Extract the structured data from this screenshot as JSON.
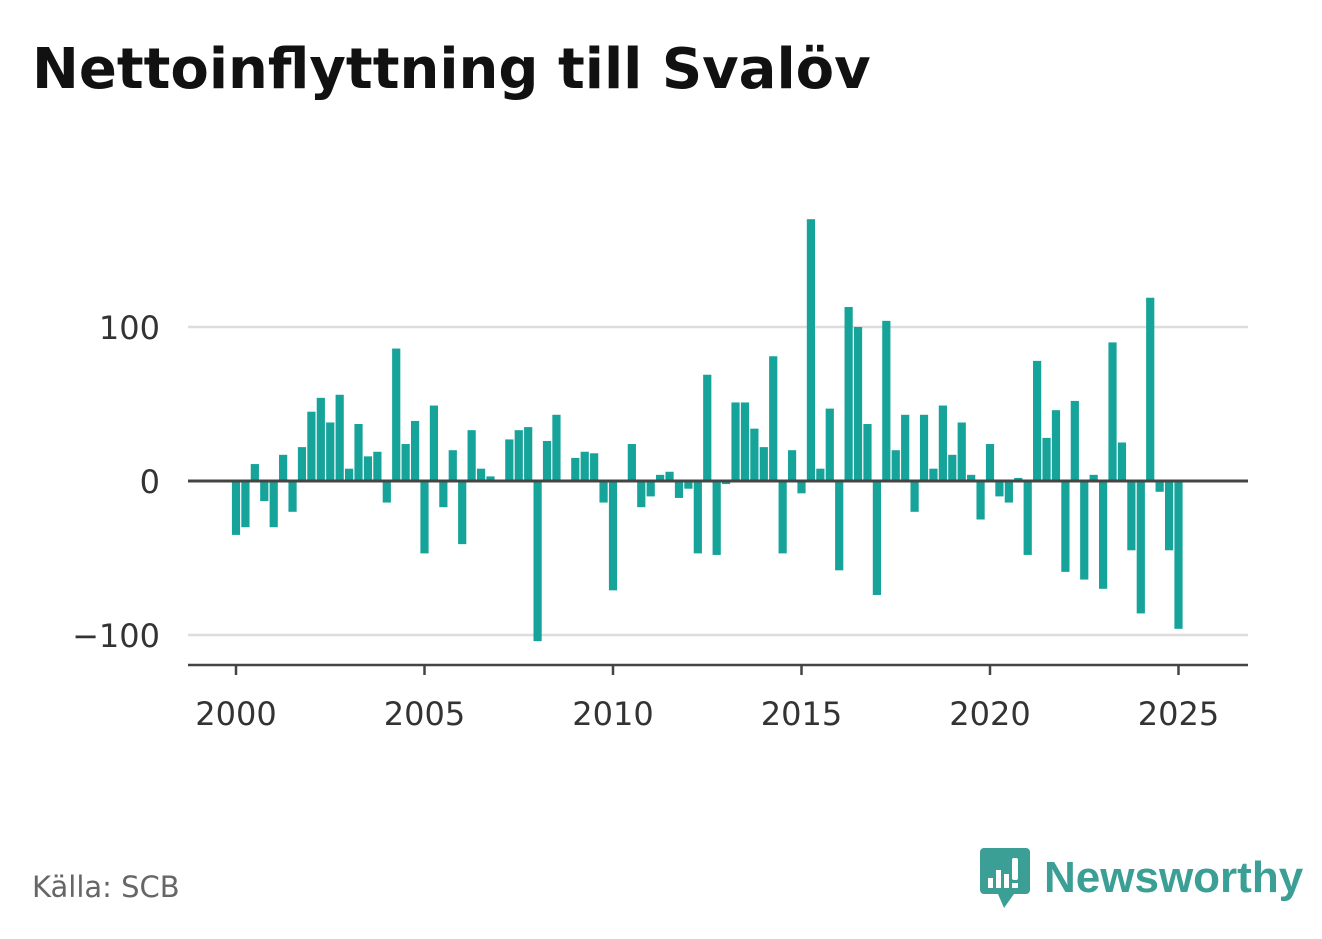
{
  "title": "Nettoinflyttning till Svalöv",
  "source": "Källa: SCB",
  "brand": {
    "name": "Newsworthy",
    "icon": "newsworthy-logo-icon",
    "color": "#3b9f95"
  },
  "colors": {
    "bar": "#16a39a",
    "grid": "#dddddd",
    "zero_line": "#444444",
    "axis": "#444444"
  },
  "chart_data": {
    "type": "bar",
    "title": "Nettoinflyttning till Svalöv",
    "xlabel": "",
    "ylabel": "",
    "frequency": "quarterly",
    "x_start": 2000.0,
    "x_step": 0.25,
    "xlim": [
      1997.5,
      2026.75
    ],
    "ylim": [
      -120,
      170
    ],
    "x_ticks": [
      2000,
      2005,
      2010,
      2015,
      2020,
      2025
    ],
    "x_tick_labels": [
      "2000",
      "2005",
      "2010",
      "2015",
      "2020",
      "2025"
    ],
    "y_ticks": [
      -100,
      0,
      100
    ],
    "y_tick_labels": [
      "−100",
      "0",
      "100"
    ],
    "grid": true,
    "legend": "none",
    "values": [
      -35,
      -30,
      11,
      -13,
      -30,
      17,
      -20,
      22,
      45,
      54,
      38,
      56,
      8,
      37,
      16,
      19,
      -14,
      86,
      24,
      39,
      -47,
      49,
      -17,
      20,
      -41,
      33,
      8,
      3,
      0,
      27,
      33,
      35,
      -104,
      26,
      43,
      0,
      15,
      19,
      18,
      -14,
      -71,
      0,
      24,
      -17,
      -10,
      4,
      6,
      -11,
      -5,
      -47,
      69,
      -48,
      -2,
      51,
      51,
      34,
      22,
      81,
      -47,
      20,
      -8,
      170,
      8,
      47,
      -58,
      113,
      100,
      37,
      -74,
      104,
      20,
      43,
      -20,
      43,
      8,
      49,
      17,
      38,
      4,
      -25,
      24,
      -10,
      -14,
      2,
      -48,
      78,
      28,
      46,
      -59,
      52,
      -64,
      4,
      -70,
      90,
      25,
      -45,
      -86,
      119,
      -7,
      -45,
      -96
    ]
  }
}
